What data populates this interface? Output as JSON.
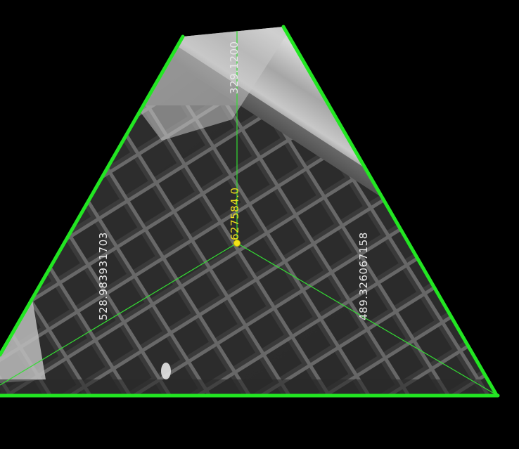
{
  "viewer": {
    "background_color": "#000000",
    "outline_color": "#22e622",
    "measure_line_color": "#33dd33",
    "label_color": "#e8e8e8",
    "center_label_color": "#f2e21a"
  },
  "measurements": {
    "top_distance": "329.1200",
    "left_distance": "528.983931703",
    "right_distance": "489.326067158",
    "center_value": "627584.0"
  }
}
